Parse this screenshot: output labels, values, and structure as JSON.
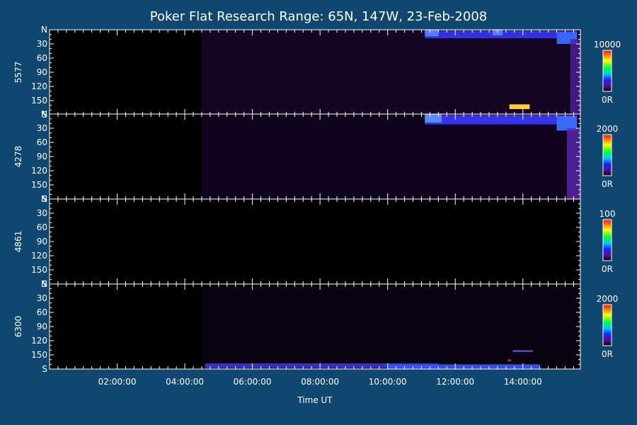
{
  "chart_data": {
    "type": "heatmap",
    "title": "Poker Flat Research Range: 65N, 147W, 23-Feb-2008",
    "xlabel": "Time UT",
    "x_range_hours": [
      0.0,
      15.7
    ],
    "x_ticks": [
      {
        "value": 2,
        "label": "02:00:00"
      },
      {
        "value": 4,
        "label": "04:00:00"
      },
      {
        "value": 6,
        "label": "06:00:00"
      },
      {
        "value": 8,
        "label": "08:00:00"
      },
      {
        "value": 10,
        "label": "10:00:00"
      },
      {
        "value": 12,
        "label": "12:00:00"
      },
      {
        "value": 14,
        "label": "14:00:00"
      }
    ],
    "y_range": [
      0,
      180
    ],
    "y_ticks": [
      {
        "value": 0,
        "label": "N"
      },
      {
        "value": 30,
        "label": "30"
      },
      {
        "value": 60,
        "label": "60"
      },
      {
        "value": 90,
        "label": "90"
      },
      {
        "value": 120,
        "label": "120"
      },
      {
        "value": 150,
        "label": "150"
      },
      {
        "value": 180,
        "label": "S"
      }
    ],
    "panels": [
      {
        "wavelength": "5577",
        "colorbar_max": "10000",
        "colorbar_min": "0R",
        "features": [
          {
            "t0": 4.5,
            "t1": 15.7,
            "y0": 0,
            "y1": 180,
            "level": 0.12,
            "color": "#2a0a4a"
          },
          {
            "t0": 11.1,
            "t1": 15.6,
            "y0": 2,
            "y1": 18,
            "level": 0.5,
            "color": "#3a3aff"
          },
          {
            "t0": 11.1,
            "t1": 11.5,
            "y0": 0,
            "y1": 14,
            "level": 0.8,
            "color": "#5a7aff"
          },
          {
            "t0": 13.1,
            "t1": 13.4,
            "y0": 0,
            "y1": 12,
            "level": 0.8,
            "color": "#5a7aff"
          },
          {
            "t0": 15.0,
            "t1": 15.6,
            "y0": 5,
            "y1": 30,
            "level": 0.6,
            "color": "#3a6aff"
          },
          {
            "t0": 15.4,
            "t1": 15.7,
            "y0": 20,
            "y1": 180,
            "level": 0.4,
            "color": "#5020a0"
          },
          {
            "t0": 13.6,
            "t1": 14.2,
            "y0": 158,
            "y1": 168,
            "level": 0.9,
            "color": "#ffcc33"
          }
        ]
      },
      {
        "wavelength": "4278",
        "colorbar_max": "2000",
        "colorbar_min": "0R",
        "features": [
          {
            "t0": 4.5,
            "t1": 15.7,
            "y0": 0,
            "y1": 180,
            "level": 0.1,
            "color": "#24083f"
          },
          {
            "t0": 11.1,
            "t1": 15.6,
            "y0": 2,
            "y1": 22,
            "level": 0.55,
            "color": "#3a3aff"
          },
          {
            "t0": 11.1,
            "t1": 11.6,
            "y0": 0,
            "y1": 18,
            "level": 0.8,
            "color": "#5a8aff"
          },
          {
            "t0": 15.0,
            "t1": 15.6,
            "y0": 5,
            "y1": 35,
            "level": 0.65,
            "color": "#3a6aff"
          },
          {
            "t0": 15.3,
            "t1": 15.7,
            "y0": 30,
            "y1": 180,
            "level": 0.45,
            "color": "#5a28b0"
          }
        ]
      },
      {
        "wavelength": "4861",
        "colorbar_max": "100",
        "colorbar_min": "0R",
        "features": []
      },
      {
        "wavelength": "6300",
        "colorbar_max": "2000",
        "colorbar_min": "0R",
        "features": [
          {
            "t0": 4.5,
            "t1": 15.7,
            "y0": 0,
            "y1": 180,
            "level": 0.06,
            "color": "#160428"
          },
          {
            "t0": 4.6,
            "t1": 11.5,
            "y0": 168,
            "y1": 178,
            "level": 0.5,
            "color": "#3a3ae0"
          },
          {
            "t0": 10.0,
            "t1": 14.5,
            "y0": 170,
            "y1": 179,
            "level": 0.55,
            "color": "#3a55ff"
          },
          {
            "t0": 13.7,
            "t1": 14.3,
            "y0": 140,
            "y1": 144,
            "level": 0.6,
            "color": "#6a40d0"
          },
          {
            "t0": 13.55,
            "t1": 13.65,
            "y0": 160,
            "y1": 163,
            "level": 1.0,
            "color": "#ff3030"
          }
        ]
      }
    ]
  }
}
